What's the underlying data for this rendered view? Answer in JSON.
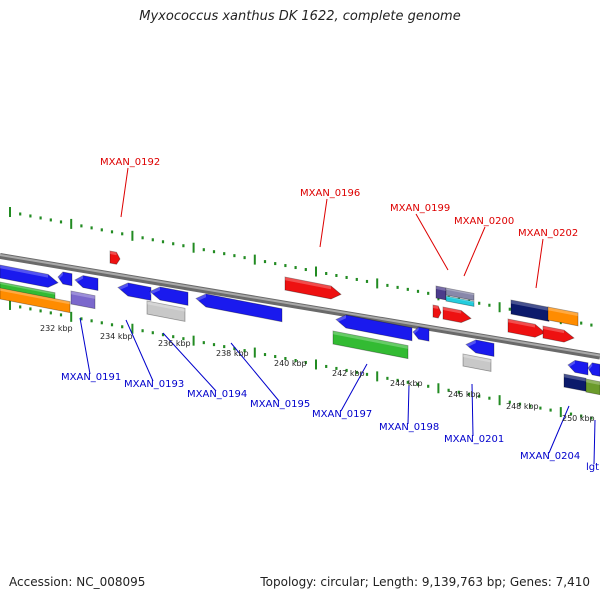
{
  "header": {
    "title": "Myxococcus xanthus DK 1622, complete genome"
  },
  "footer": {
    "accession": "Accession: NC_008095",
    "topology": "Topology: circular; Length: 9,139,763 bp; Genes: 7,410"
  },
  "colors": {
    "forward_label": "#dd0000",
    "reverse_label": "#0000cc",
    "backbone": "#888888",
    "tick_green": "#228b22"
  },
  "scale_labels": [
    "232 kbp",
    "234 kbp",
    "236 kbp",
    "238 kbp",
    "240 kbp",
    "242 kbp",
    "244 kbp",
    "246 kbp",
    "248 kbp",
    "250 kbp"
  ],
  "forward_genes": [
    "MXAN_0192",
    "MXAN_0196",
    "MXAN_0199",
    "MXAN_0200",
    "MXAN_0202"
  ],
  "reverse_genes": [
    "MXAN_0191",
    "MXAN_0193",
    "MXAN_0194",
    "MXAN_0195",
    "MXAN_0197",
    "MXAN_0198",
    "MXAN_0201",
    "MXAN_0204",
    "lgt"
  ]
}
